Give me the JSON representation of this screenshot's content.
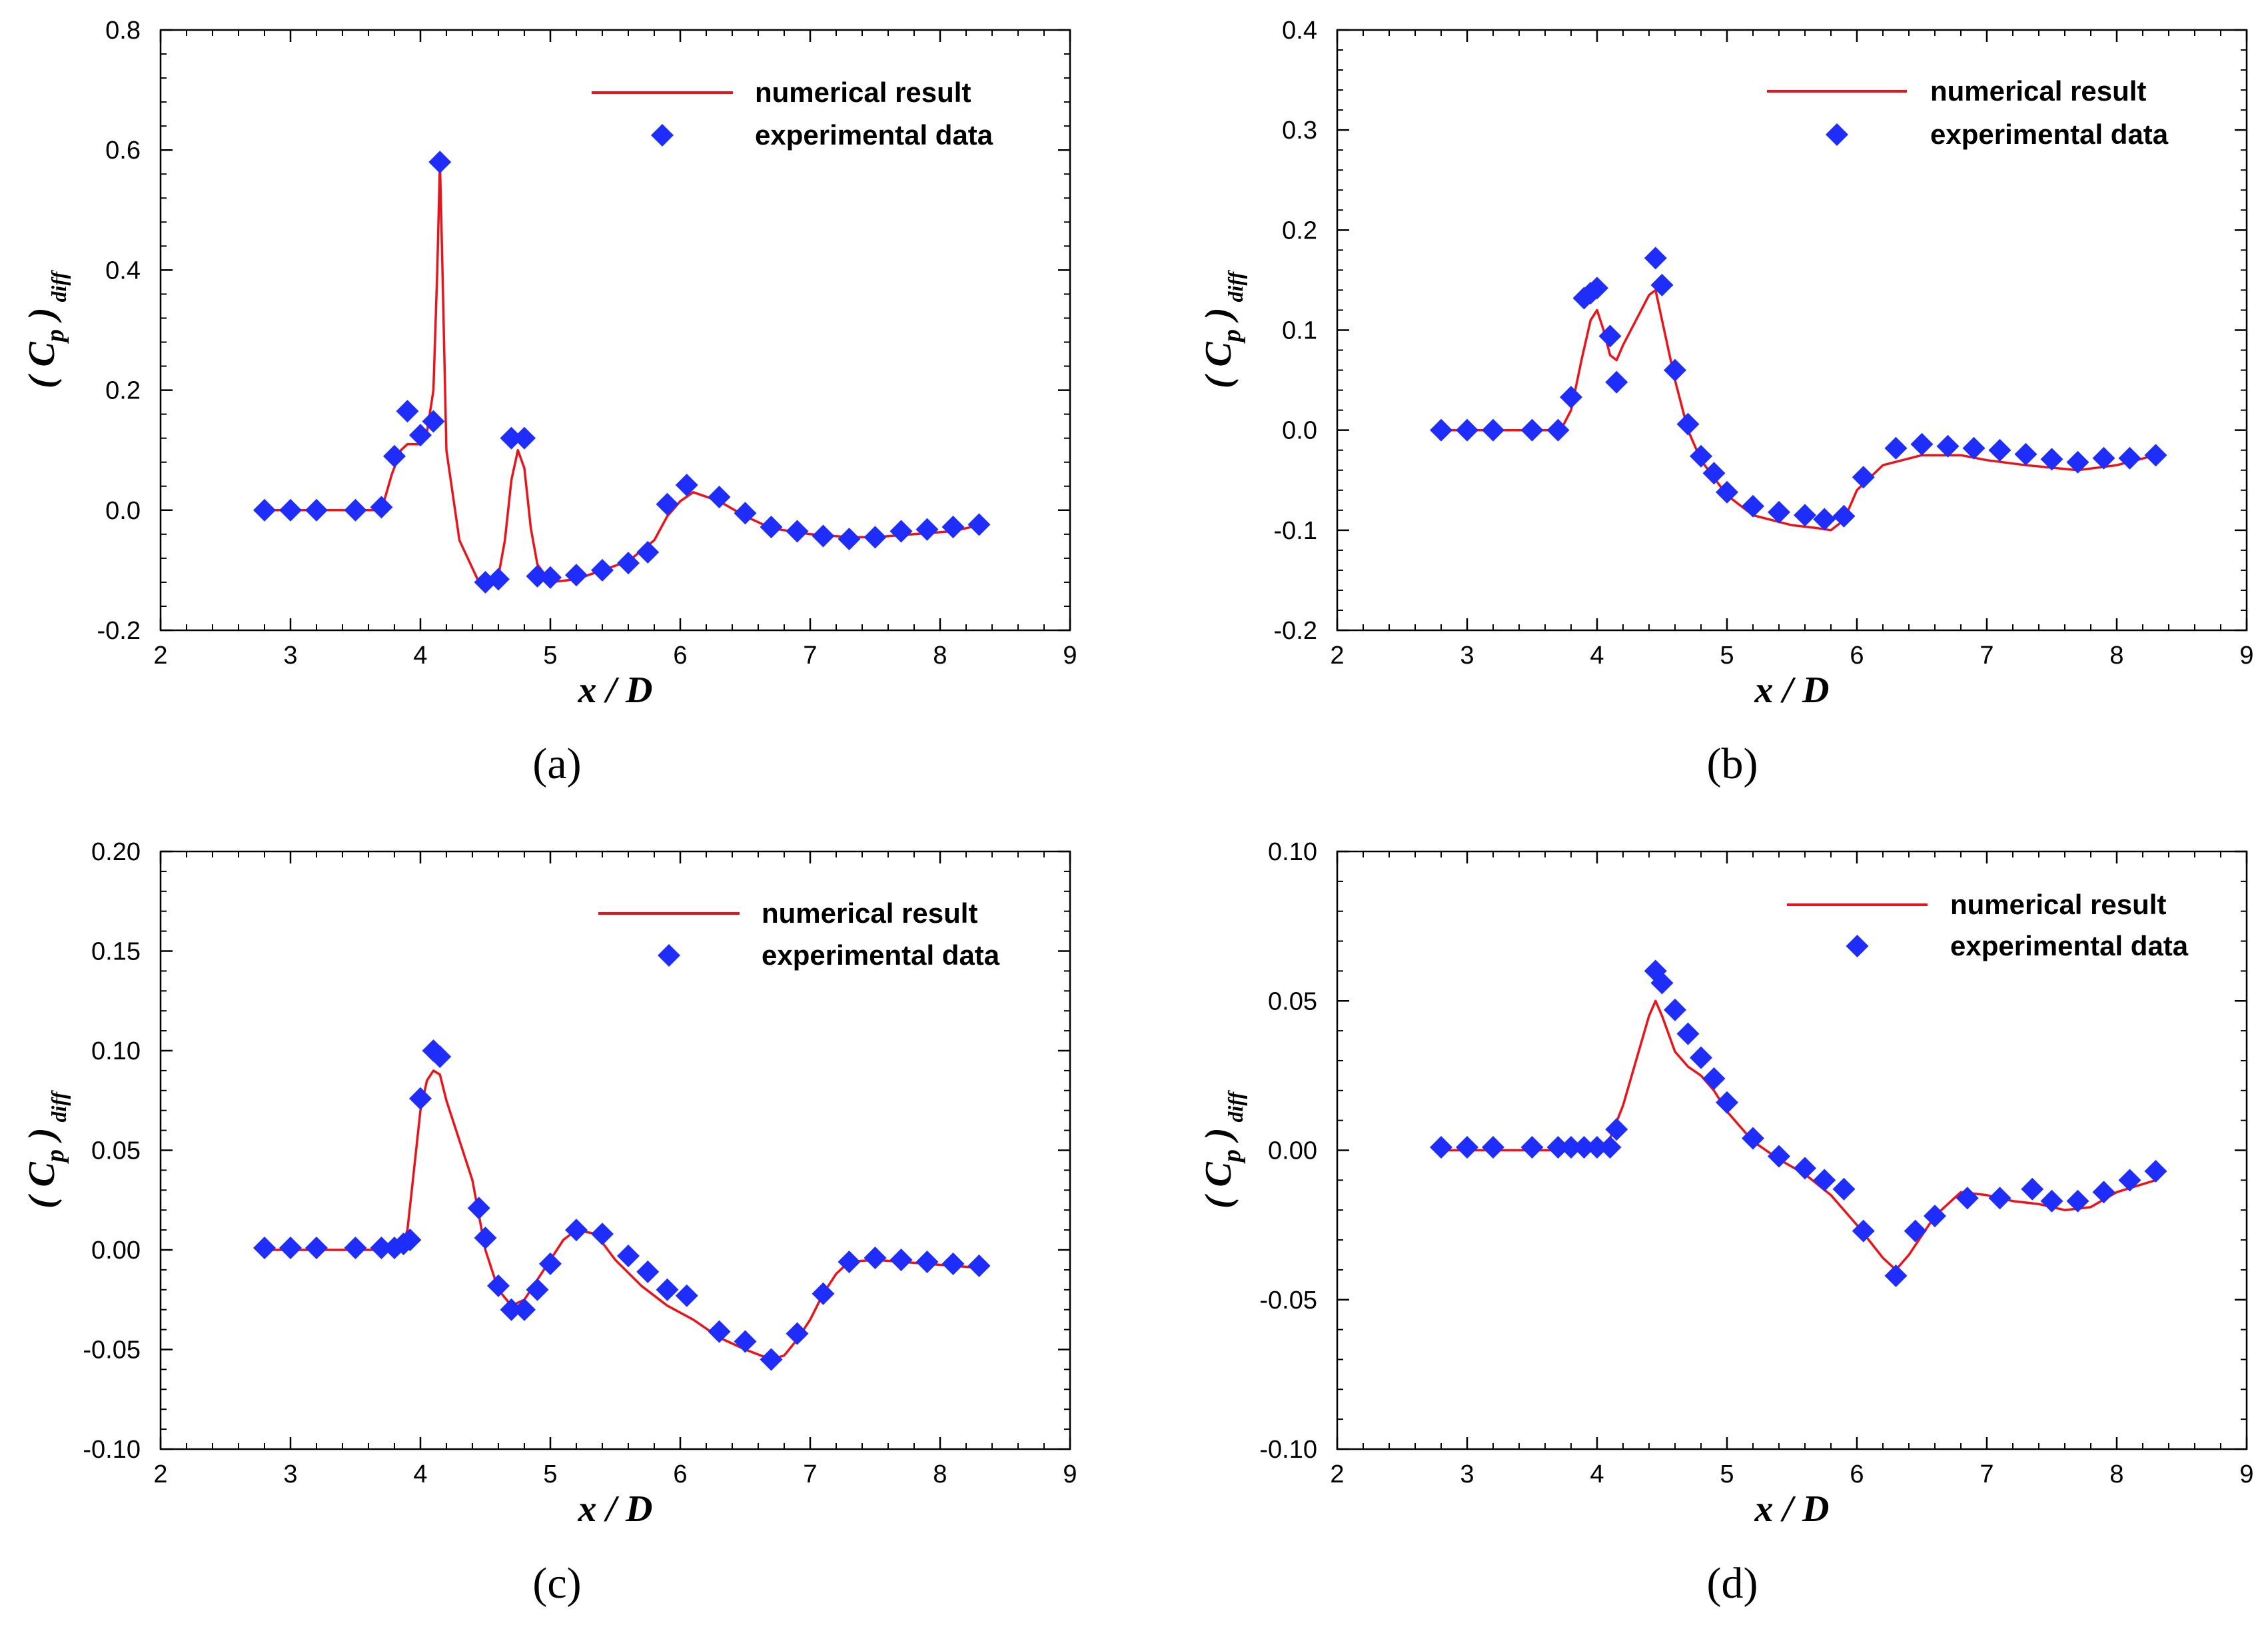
{
  "colors": {
    "numerical": "#e8141a",
    "experimental": "#1f2dfa",
    "axis": "#000000"
  },
  "chart_data": [
    {
      "type": "scatter",
      "panel_label": "(a)",
      "xlabel": "x / D",
      "ylabel": {
        "main": "( C",
        "sub": "p",
        "close": " )",
        "suffix": "diff"
      },
      "xlim": [
        2,
        9
      ],
      "ylim": [
        -0.2,
        0.8
      ],
      "x_ticks": [
        "2",
        "3",
        "4",
        "5",
        "6",
        "7",
        "8",
        "9"
      ],
      "y_ticks": [
        "-0.2",
        "0.0",
        "0.2",
        "0.4",
        "0.6",
        "0.8"
      ],
      "legend": {
        "position": "top-right",
        "line_label": "numerical result",
        "marker_label": "experimental data"
      },
      "series": [
        {
          "name": "numerical result",
          "style": "line",
          "x": [
            2.8,
            3.5,
            3.7,
            3.78,
            3.85,
            3.9,
            4.0,
            4.05,
            4.1,
            4.13,
            4.15,
            4.17,
            4.2,
            4.3,
            4.45,
            4.6,
            4.65,
            4.7,
            4.75,
            4.8,
            4.85,
            4.9,
            5.0,
            5.2,
            5.4,
            5.6,
            5.8,
            5.9,
            6.0,
            6.1,
            6.3,
            6.5,
            6.7,
            7.0,
            7.3,
            7.5,
            7.8,
            8.1,
            8.3
          ],
          "y": [
            0.0,
            0.0,
            0.0,
            0.06,
            0.1,
            0.11,
            0.11,
            0.13,
            0.2,
            0.4,
            0.58,
            0.4,
            0.1,
            -0.05,
            -0.12,
            -0.11,
            -0.05,
            0.05,
            0.1,
            0.07,
            -0.03,
            -0.09,
            -0.12,
            -0.115,
            -0.1,
            -0.085,
            -0.05,
            -0.01,
            0.015,
            0.03,
            0.015,
            -0.01,
            -0.03,
            -0.04,
            -0.045,
            -0.045,
            -0.04,
            -0.035,
            -0.025
          ]
        },
        {
          "name": "experimental data",
          "style": "markers",
          "x": [
            2.8,
            3.0,
            3.2,
            3.5,
            3.7,
            3.8,
            3.9,
            4.0,
            4.1,
            4.15,
            4.5,
            4.6,
            4.7,
            4.8,
            4.9,
            5.0,
            5.2,
            5.4,
            5.6,
            5.75,
            5.9,
            6.05,
            6.3,
            6.5,
            6.7,
            6.9,
            7.1,
            7.3,
            7.5,
            7.7,
            7.9,
            8.1,
            8.3
          ],
          "y": [
            0.0,
            0.0,
            0.0,
            0.0,
            0.005,
            0.09,
            0.165,
            0.125,
            0.148,
            0.58,
            -0.12,
            -0.115,
            0.12,
            0.12,
            -0.11,
            -0.112,
            -0.108,
            -0.1,
            -0.088,
            -0.07,
            0.01,
            0.042,
            0.022,
            -0.005,
            -0.028,
            -0.035,
            -0.043,
            -0.048,
            -0.045,
            -0.035,
            -0.032,
            -0.028,
            -0.024
          ]
        }
      ]
    },
    {
      "type": "scatter",
      "panel_label": "(b)",
      "xlabel": "x / D",
      "ylabel": {
        "main": "( C",
        "sub": "p",
        "close": " )",
        "suffix": "diff"
      },
      "xlim": [
        2,
        9
      ],
      "ylim": [
        -0.2,
        0.4
      ],
      "x_ticks": [
        "2",
        "3",
        "4",
        "5",
        "6",
        "7",
        "8",
        "9"
      ],
      "y_ticks": [
        "-0.2",
        "-0.1",
        "0.0",
        "0.1",
        "0.2",
        "0.3",
        "0.4"
      ],
      "legend": {
        "position": "top-right",
        "line_label": "numerical result",
        "marker_label": "experimental data"
      },
      "series": [
        {
          "name": "numerical result",
          "style": "line",
          "x": [
            2.8,
            3.5,
            3.72,
            3.8,
            3.88,
            3.95,
            4.0,
            4.05,
            4.1,
            4.15,
            4.2,
            4.3,
            4.4,
            4.45,
            4.5,
            4.6,
            4.7,
            4.8,
            5.0,
            5.2,
            5.5,
            5.7,
            5.8,
            5.9,
            6.0,
            6.2,
            6.5,
            6.8,
            7.0,
            7.3,
            7.7,
            8.0,
            8.3
          ],
          "y": [
            0.0,
            0.0,
            0.0,
            0.02,
            0.07,
            0.11,
            0.12,
            0.1,
            0.075,
            0.07,
            0.085,
            0.11,
            0.135,
            0.14,
            0.11,
            0.05,
            0.0,
            -0.03,
            -0.065,
            -0.085,
            -0.095,
            -0.098,
            -0.1,
            -0.09,
            -0.06,
            -0.035,
            -0.025,
            -0.025,
            -0.03,
            -0.035,
            -0.04,
            -0.035,
            -0.025
          ]
        },
        {
          "name": "experimental data",
          "style": "markers",
          "x": [
            2.8,
            3.0,
            3.2,
            3.5,
            3.7,
            3.8,
            3.9,
            3.95,
            4.0,
            4.1,
            4.15,
            4.45,
            4.5,
            4.6,
            4.7,
            4.8,
            4.9,
            5.0,
            5.2,
            5.4,
            5.6,
            5.75,
            5.9,
            6.05,
            6.3,
            6.5,
            6.7,
            6.9,
            7.1,
            7.3,
            7.5,
            7.7,
            7.9,
            8.1,
            8.3
          ],
          "y": [
            0.0,
            0.0,
            0.0,
            0.0,
            0.0,
            0.033,
            0.132,
            0.137,
            0.142,
            0.094,
            0.048,
            0.172,
            0.145,
            0.06,
            0.006,
            -0.026,
            -0.043,
            -0.062,
            -0.076,
            -0.082,
            -0.085,
            -0.089,
            -0.086,
            -0.047,
            -0.018,
            -0.014,
            -0.016,
            -0.018,
            -0.02,
            -0.024,
            -0.029,
            -0.032,
            -0.028,
            -0.028,
            -0.025
          ]
        }
      ]
    },
    {
      "type": "scatter",
      "panel_label": "(c)",
      "xlabel": "x / D",
      "ylabel": {
        "main": "( C",
        "sub": "p",
        "close": " )",
        "suffix": "diff"
      },
      "xlim": [
        2,
        9
      ],
      "ylim": [
        -0.1,
        0.2
      ],
      "x_ticks": [
        "2",
        "3",
        "4",
        "5",
        "6",
        "7",
        "8",
        "9"
      ],
      "y_ticks": [
        "-0.10",
        "-0.05",
        "0.00",
        "0.05",
        "0.10",
        "0.15",
        "0.20"
      ],
      "legend": {
        "position": "top-right",
        "line_label": "numerical result",
        "marker_label": "experimental data"
      },
      "series": [
        {
          "name": "numerical result",
          "style": "line",
          "x": [
            2.8,
            3.5,
            3.85,
            3.9,
            3.95,
            4.0,
            4.05,
            4.1,
            4.15,
            4.2,
            4.3,
            4.4,
            4.5,
            4.6,
            4.7,
            4.8,
            4.9,
            5.0,
            5.1,
            5.2,
            5.35,
            5.5,
            5.7,
            5.9,
            6.1,
            6.3,
            6.5,
            6.7,
            6.8,
            6.9,
            7.0,
            7.1,
            7.2,
            7.3,
            7.5,
            7.7,
            7.9,
            8.1,
            8.3
          ],
          "y": [
            0.0,
            0.0,
            0.0,
            0.01,
            0.04,
            0.07,
            0.085,
            0.09,
            0.088,
            0.075,
            0.055,
            0.035,
            0.0,
            -0.02,
            -0.028,
            -0.025,
            -0.015,
            -0.005,
            0.005,
            0.01,
            0.008,
            -0.005,
            -0.018,
            -0.028,
            -0.035,
            -0.044,
            -0.05,
            -0.055,
            -0.053,
            -0.045,
            -0.035,
            -0.022,
            -0.012,
            -0.006,
            -0.005,
            -0.006,
            -0.007,
            -0.008,
            -0.009
          ]
        },
        {
          "name": "experimental data",
          "style": "markers",
          "x": [
            2.8,
            3.0,
            3.2,
            3.5,
            3.7,
            3.8,
            3.87,
            3.92,
            4.0,
            4.1,
            4.15,
            4.45,
            4.5,
            4.6,
            4.7,
            4.8,
            4.9,
            5.0,
            5.2,
            5.4,
            5.6,
            5.75,
            5.9,
            6.05,
            6.3,
            6.5,
            6.7,
            6.9,
            7.1,
            7.3,
            7.5,
            7.7,
            7.9,
            8.1,
            8.3
          ],
          "y": [
            0.001,
            0.001,
            0.001,
            0.001,
            0.001,
            0.001,
            0.003,
            0.005,
            0.076,
            0.1,
            0.097,
            0.021,
            0.006,
            -0.018,
            -0.03,
            -0.03,
            -0.02,
            -0.007,
            0.01,
            0.008,
            -0.003,
            -0.011,
            -0.02,
            -0.023,
            -0.041,
            -0.046,
            -0.055,
            -0.042,
            -0.022,
            -0.006,
            -0.004,
            -0.005,
            -0.006,
            -0.007,
            -0.008
          ]
        }
      ]
    },
    {
      "type": "scatter",
      "panel_label": "(d)",
      "xlabel": "x / D",
      "ylabel": {
        "main": "( C",
        "sub": "p",
        "close": " )",
        "suffix": "diff"
      },
      "xlim": [
        2,
        9
      ],
      "ylim": [
        -0.1,
        0.1
      ],
      "x_ticks": [
        "2",
        "3",
        "4",
        "5",
        "6",
        "7",
        "8",
        "9"
      ],
      "y_ticks": [
        "-0.10",
        "-0.05",
        "0.00",
        "0.05",
        "0.10"
      ],
      "legend": {
        "position": "top-right",
        "line_label": "numerical result",
        "marker_label": "experimental data"
      },
      "series": [
        {
          "name": "numerical result",
          "style": "line",
          "x": [
            2.8,
            3.5,
            4.0,
            4.1,
            4.2,
            4.3,
            4.4,
            4.45,
            4.5,
            4.6,
            4.7,
            4.8,
            4.9,
            5.0,
            5.2,
            5.4,
            5.6,
            5.8,
            6.0,
            6.2,
            6.3,
            6.4,
            6.6,
            6.8,
            7.0,
            7.2,
            7.4,
            7.6,
            7.8,
            8.0,
            8.3
          ],
          "y": [
            0.0,
            0.0,
            0.0,
            0.004,
            0.015,
            0.03,
            0.045,
            0.05,
            0.045,
            0.033,
            0.028,
            0.025,
            0.02,
            0.013,
            0.003,
            -0.003,
            -0.008,
            -0.015,
            -0.025,
            -0.036,
            -0.04,
            -0.035,
            -0.022,
            -0.014,
            -0.015,
            -0.017,
            -0.018,
            -0.02,
            -0.019,
            -0.014,
            -0.01
          ]
        },
        {
          "name": "experimental data",
          "style": "markers",
          "x": [
            2.8,
            3.0,
            3.2,
            3.5,
            3.7,
            3.8,
            3.9,
            4.0,
            4.1,
            4.15,
            4.45,
            4.5,
            4.6,
            4.7,
            4.8,
            4.9,
            5.0,
            5.2,
            5.4,
            5.6,
            5.75,
            5.9,
            6.05,
            6.3,
            6.45,
            6.6,
            6.85,
            7.1,
            7.35,
            7.5,
            7.7,
            7.9,
            8.1,
            8.3
          ],
          "y": [
            0.001,
            0.001,
            0.001,
            0.001,
            0.001,
            0.001,
            0.001,
            0.001,
            0.001,
            0.007,
            0.06,
            0.056,
            0.047,
            0.039,
            0.031,
            0.024,
            0.016,
            0.004,
            -0.002,
            -0.006,
            -0.01,
            -0.013,
            -0.027,
            -0.042,
            -0.027,
            -0.022,
            -0.016,
            -0.016,
            -0.013,
            -0.017,
            -0.017,
            -0.014,
            -0.01,
            -0.007
          ]
        }
      ]
    }
  ]
}
